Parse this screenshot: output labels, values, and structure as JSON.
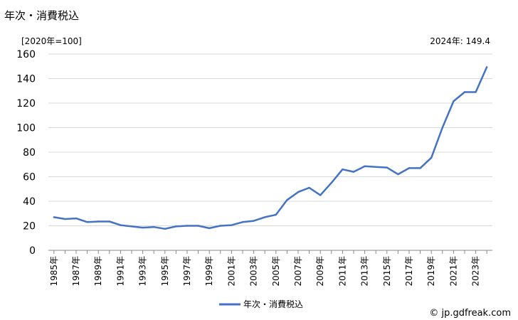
{
  "chart_data": {
    "type": "line",
    "title": "年次・消費税込",
    "unit_label": "[2020年=100]",
    "annotation": "2024年: 149.4",
    "watermark": "© jp.gdfreak.com",
    "ylim": [
      0,
      160
    ],
    "yticks": [
      0,
      20,
      40,
      60,
      80,
      100,
      120,
      140,
      160
    ],
    "x": [
      1985,
      1986,
      1987,
      1988,
      1989,
      1990,
      1991,
      1992,
      1993,
      1994,
      1995,
      1996,
      1997,
      1998,
      1999,
      2000,
      2001,
      2002,
      2003,
      2004,
      2005,
      2006,
      2007,
      2008,
      2009,
      2010,
      2011,
      2012,
      2013,
      2014,
      2015,
      2016,
      2017,
      2018,
      2019,
      2020,
      2021,
      2022,
      2023,
      2024
    ],
    "x_tick_labels": [
      "1985年",
      "1987年",
      "1989年",
      "1991年",
      "1993年",
      "1995年",
      "1997年",
      "1999年",
      "2001年",
      "2003年",
      "2005年",
      "2007年",
      "2009年",
      "2011年",
      "2013年",
      "2015年",
      "2017年",
      "2019年",
      "2021年",
      "2023年"
    ],
    "series": [
      {
        "name": "年次・消費税込",
        "color": "#4472c4",
        "values": [
          27.0,
          25.5,
          26.0,
          23.0,
          23.5,
          23.5,
          20.5,
          19.5,
          18.5,
          19.0,
          17.5,
          19.5,
          20.0,
          20.0,
          18.0,
          20.0,
          20.5,
          23.0,
          24.0,
          27.0,
          29.0,
          41.0,
          47.5,
          51.0,
          45.0,
          55.0,
          66.0,
          64.0,
          68.5,
          68.0,
          67.5,
          62.0,
          67.0,
          67.0,
          75.5,
          100.0,
          121.5,
          129.0,
          129.0,
          149.4
        ]
      }
    ],
    "legend": "bottom-center",
    "grid": true
  }
}
